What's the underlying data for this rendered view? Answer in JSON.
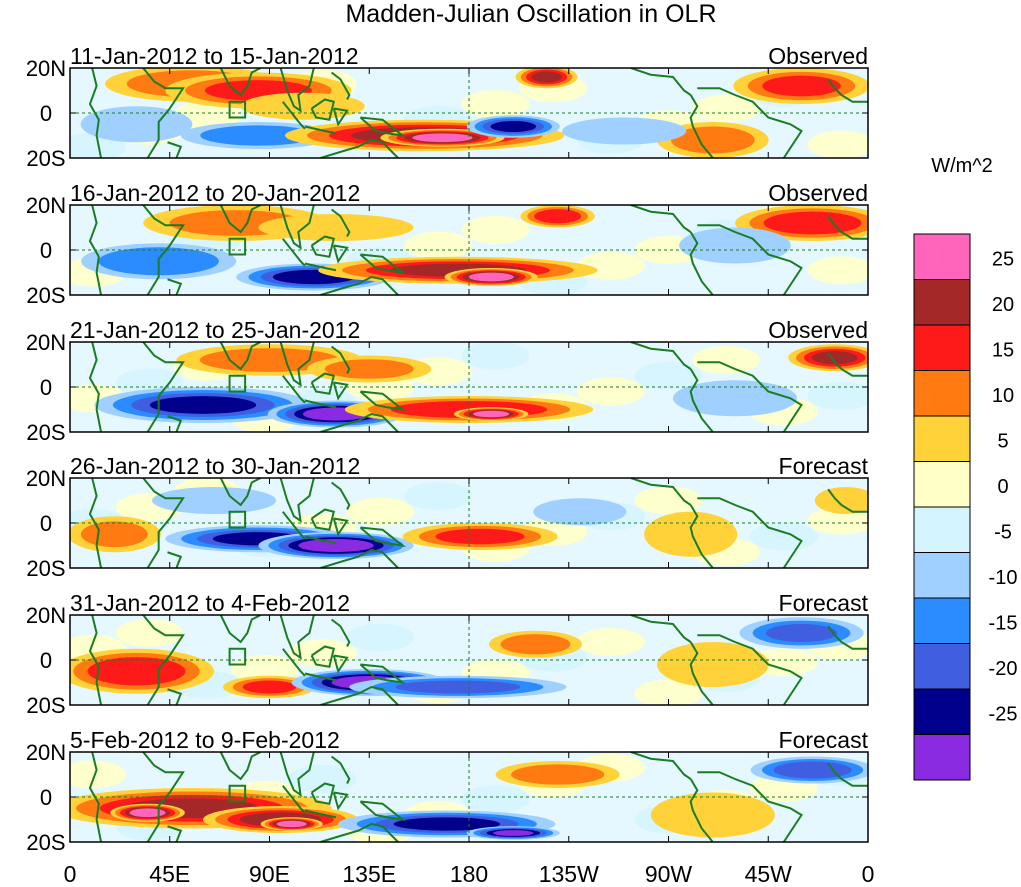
{
  "chart_data": {
    "type": "heatmap",
    "title": "Madden-Julian Oscillation in OLR",
    "units_label": "W/m^2",
    "y_tick_labels": [
      "20N",
      "0",
      "20S"
    ],
    "x_tick_labels": [
      "0",
      "45E",
      "90E",
      "135E",
      "180",
      "135W",
      "90W",
      "45W",
      "0"
    ],
    "x_range_deg_east": [
      0,
      360
    ],
    "y_range_deg": [
      -20,
      20
    ],
    "colorbar": {
      "labels": [
        "25",
        "20",
        "15",
        "10",
        "5",
        "0",
        "-5",
        "-10",
        "-15",
        "-20",
        "-25"
      ],
      "colors": [
        "#ff66bb",
        "#a52828",
        "#ff1a1a",
        "#ff7a10",
        "#ffd23a",
        "#ffffc6",
        "#d4f4ff",
        "#9fd0ff",
        "#2a8cff",
        "#3f5fe0",
        "#00008c",
        "#8a2be2"
      ]
    },
    "panels": [
      {
        "date_range": "11-Jan-2012 to 15-Jan-2012",
        "status": "Observed",
        "anomalies": [
          {
            "lon": 55,
            "lat": 13,
            "rlon": 28,
            "rlat": 8,
            "v": 12
          },
          {
            "lon": 85,
            "lat": 10,
            "rlon": 30,
            "rlat": 8,
            "v": 15
          },
          {
            "lon": 105,
            "lat": 3,
            "rlon": 20,
            "rlat": 6,
            "v": 8
          },
          {
            "lon": 30,
            "lat": -5,
            "rlon": 18,
            "rlat": 8,
            "v": -9
          },
          {
            "lon": 85,
            "lat": -10,
            "rlon": 25,
            "rlat": 6,
            "v": -12
          },
          {
            "lon": 160,
            "lat": -10,
            "rlon": 45,
            "rlat": 7,
            "v": 22
          },
          {
            "lon": 168,
            "lat": -11,
            "rlon": 20,
            "rlat": 4,
            "v": 28
          },
          {
            "lon": 200,
            "lat": -6,
            "rlon": 15,
            "rlat": 5,
            "v": -20
          },
          {
            "lon": 215,
            "lat": 16,
            "rlon": 10,
            "rlat": 5,
            "v": 20
          },
          {
            "lon": 290,
            "lat": -12,
            "rlon": 18,
            "rlat": 8,
            "v": 12
          },
          {
            "lon": 330,
            "lat": 12,
            "rlon": 22,
            "rlat": 8,
            "v": 15
          },
          {
            "lon": 250,
            "lat": -8,
            "rlon": 20,
            "rlat": 6,
            "v": -6
          }
        ]
      },
      {
        "date_range": "16-Jan-2012 to 20-Jan-2012",
        "status": "Observed",
        "anomalies": [
          {
            "lon": 75,
            "lat": 12,
            "rlon": 30,
            "rlat": 8,
            "v": 10
          },
          {
            "lon": 120,
            "lat": 10,
            "rlon": 25,
            "rlat": 6,
            "v": 8
          },
          {
            "lon": 40,
            "lat": -5,
            "rlon": 25,
            "rlat": 8,
            "v": -14
          },
          {
            "lon": 110,
            "lat": -12,
            "rlon": 25,
            "rlat": 6,
            "v": -22
          },
          {
            "lon": 175,
            "lat": -9,
            "rlon": 45,
            "rlat": 6,
            "v": 20
          },
          {
            "lon": 190,
            "lat": -12,
            "rlon": 15,
            "rlat": 4,
            "v": 28
          },
          {
            "lon": 220,
            "lat": 15,
            "rlon": 12,
            "rlat": 5,
            "v": 18
          },
          {
            "lon": 335,
            "lat": 12,
            "rlon": 25,
            "rlat": 8,
            "v": 18
          },
          {
            "lon": 300,
            "lat": 2,
            "rlon": 18,
            "rlat": 8,
            "v": -8
          }
        ]
      },
      {
        "date_range": "21-Jan-2012 to 25-Jan-2012",
        "status": "Observed",
        "anomalies": [
          {
            "lon": 90,
            "lat": 12,
            "rlon": 30,
            "rlat": 7,
            "v": 12
          },
          {
            "lon": 135,
            "lat": 8,
            "rlon": 20,
            "rlat": 6,
            "v": 10
          },
          {
            "lon": 60,
            "lat": -8,
            "rlon": 35,
            "rlat": 8,
            "v": -20
          },
          {
            "lon": 120,
            "lat": -12,
            "rlon": 22,
            "rlat": 6,
            "v": -28
          },
          {
            "lon": 180,
            "lat": -10,
            "rlon": 40,
            "rlat": 6,
            "v": 18
          },
          {
            "lon": 190,
            "lat": -12,
            "rlon": 12,
            "rlat": 3,
            "v": 28
          },
          {
            "lon": 345,
            "lat": 13,
            "rlon": 15,
            "rlat": 6,
            "v": 20
          },
          {
            "lon": 300,
            "lat": -5,
            "rlon": 20,
            "rlat": 8,
            "v": -6
          }
        ]
      },
      {
        "date_range": "26-Jan-2012 to 30-Jan-2012",
        "status": "Forecast",
        "anomalies": [
          {
            "lon": 20,
            "lat": -5,
            "rlon": 15,
            "rlat": 8,
            "v": 10
          },
          {
            "lon": 65,
            "lat": 10,
            "rlon": 20,
            "rlat": 6,
            "v": -8
          },
          {
            "lon": 85,
            "lat": -7,
            "rlon": 30,
            "rlat": 6,
            "v": -20
          },
          {
            "lon": 120,
            "lat": -10,
            "rlon": 25,
            "rlat": 6,
            "v": -28
          },
          {
            "lon": 185,
            "lat": -6,
            "rlon": 25,
            "rlat": 6,
            "v": 15
          },
          {
            "lon": 230,
            "lat": 5,
            "rlon": 15,
            "rlat": 6,
            "v": -8
          },
          {
            "lon": 350,
            "lat": 10,
            "rlon": 10,
            "rlat": 6,
            "v": 8
          },
          {
            "lon": 280,
            "lat": -5,
            "rlon": 15,
            "rlat": 10,
            "v": 5
          }
        ]
      },
      {
        "date_range": "31-Jan-2012 to 4-Feb-2012",
        "status": "Forecast",
        "anomalies": [
          {
            "lon": 30,
            "lat": -5,
            "rlon": 25,
            "rlat": 10,
            "v": 18
          },
          {
            "lon": 90,
            "lat": -12,
            "rlon": 15,
            "rlat": 5,
            "v": 15
          },
          {
            "lon": 135,
            "lat": -10,
            "rlon": 25,
            "rlat": 6,
            "v": -28
          },
          {
            "lon": 175,
            "lat": -12,
            "rlon": 35,
            "rlat": 5,
            "v": -15
          },
          {
            "lon": 210,
            "lat": 7,
            "rlon": 15,
            "rlat": 6,
            "v": 12
          },
          {
            "lon": 330,
            "lat": 12,
            "rlon": 20,
            "rlat": 7,
            "v": -15
          },
          {
            "lon": 290,
            "lat": -2,
            "rlon": 18,
            "rlat": 10,
            "v": 8
          }
        ]
      },
      {
        "date_range": "5-Feb-2012 to 9-Feb-2012",
        "status": "Forecast",
        "anomalies": [
          {
            "lon": 55,
            "lat": -5,
            "rlon": 45,
            "rlat": 9,
            "v": 20
          },
          {
            "lon": 35,
            "lat": -7,
            "rlon": 12,
            "rlat": 4,
            "v": 28
          },
          {
            "lon": 95,
            "lat": -10,
            "rlon": 25,
            "rlat": 6,
            "v": 22
          },
          {
            "lon": 100,
            "lat": -12,
            "rlon": 10,
            "rlat": 3,
            "v": 28
          },
          {
            "lon": 170,
            "lat": -12,
            "rlon": 35,
            "rlat": 6,
            "v": -20
          },
          {
            "lon": 200,
            "lat": -16,
            "rlon": 15,
            "rlat": 3,
            "v": -25
          },
          {
            "lon": 220,
            "lat": 10,
            "rlon": 20,
            "rlat": 6,
            "v": 12
          },
          {
            "lon": 335,
            "lat": 12,
            "rlon": 20,
            "rlat": 6,
            "v": -18
          },
          {
            "lon": 290,
            "lat": -8,
            "rlon": 20,
            "rlat": 10,
            "v": 8
          }
        ]
      }
    ]
  }
}
